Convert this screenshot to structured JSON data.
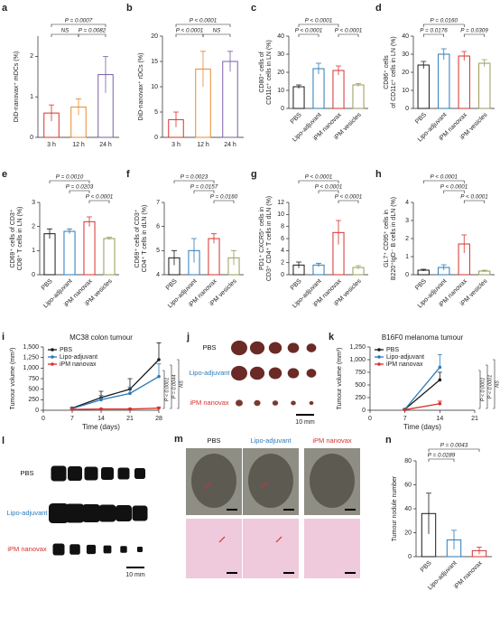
{
  "chart_data": [
    {
      "type": "bar",
      "label": "a",
      "ylabel": [
        "DiD-nanovax⁺ mDCs (%)"
      ],
      "categories": [
        "3 h",
        "12 h",
        "24 h"
      ],
      "values": [
        0.6,
        0.75,
        1.55
      ],
      "errors": [
        0.2,
        0.2,
        0.45
      ],
      "colors": [
        "#d7302c",
        "#e8892c",
        "#7b5ea7"
      ],
      "ylim": [
        0,
        2.5
      ],
      "yticks": [
        0,
        1,
        2
      ],
      "annotations": [
        "P = 0.0007",
        "NS",
        "P = 0.0082"
      ]
    },
    {
      "type": "bar",
      "label": "b",
      "ylabel": [
        "DiD-nanovax⁺ rDCs (%)"
      ],
      "categories": [
        "3 h",
        "12 h",
        "24 h"
      ],
      "values": [
        3.5,
        13.5,
        15
      ],
      "errors": [
        1.5,
        3.5,
        2
      ],
      "colors": [
        "#d7302c",
        "#e8892c",
        "#7b5ea7"
      ],
      "ylim": [
        0,
        20
      ],
      "yticks": [
        0,
        5,
        10,
        15,
        20
      ],
      "annotations": [
        "P < 0.0001",
        "P < 0.0001",
        "NS"
      ]
    },
    {
      "type": "bar",
      "label": "c",
      "ylabel": [
        "CD80⁺ cells of",
        "CD11c⁺ cells in LN (%)"
      ],
      "categories": [
        "PBS",
        "Lipo-adjuvant",
        "iPM nanovax",
        "iPM vesicles"
      ],
      "values": [
        12,
        22,
        21,
        13
      ],
      "errors": [
        1,
        3,
        2.5,
        0.8
      ],
      "colors": [
        "#1a1a1a",
        "#2a7ab9",
        "#d7302c",
        "#9a9a5a"
      ],
      "ylim": [
        0,
        40
      ],
      "yticks": [
        0,
        10,
        20,
        30,
        40
      ],
      "annotations": [
        "P < 0.0001",
        "P < 0.0001",
        "P < 0.0001"
      ]
    },
    {
      "type": "bar",
      "label": "d",
      "ylabel": [
        "CD86⁺ cells",
        "of CD11c⁺ cells in LN (%)"
      ],
      "categories": [
        "PBS",
        "Lipo-adjuvant",
        "iPM nanovax",
        "iPM vesicles"
      ],
      "values": [
        24,
        30,
        29,
        25
      ],
      "errors": [
        2,
        3,
        2.5,
        2
      ],
      "colors": [
        "#1a1a1a",
        "#2a7ab9",
        "#d7302c",
        "#9a9a5a"
      ],
      "ylim": [
        0,
        40
      ],
      "yticks": [
        0,
        10,
        20,
        30,
        40
      ],
      "annotations": [
        "P = 0.0160",
        "P = 0.0176",
        "P = 0.0309"
      ]
    },
    {
      "type": "bar",
      "label": "e",
      "ylabel": [
        "CD69⁺ cells of CD3⁺",
        "CD8⁺ T cells in LN (%)"
      ],
      "categories": [
        "PBS",
        "Lipo-adjuvant",
        "iPM nanovax",
        "iPM vesicles"
      ],
      "values": [
        1.7,
        1.8,
        2.2,
        1.5
      ],
      "errors": [
        0.2,
        0.1,
        0.2,
        0.05
      ],
      "colors": [
        "#1a1a1a",
        "#2a7ab9",
        "#d7302c",
        "#9a9a5a"
      ],
      "ylim": [
        0,
        3
      ],
      "yticks": [
        0,
        1,
        2,
        3
      ],
      "annotations": [
        "P = 0.0010",
        "P = 0.0203",
        "P < 0.0001"
      ]
    },
    {
      "type": "bar",
      "label": "f",
      "ylabel": [
        "CD69⁺ cells of CD3⁺",
        "CD4⁺ T cells in dLN (%)"
      ],
      "categories": [
        "PBS",
        "Lipo-adjuvant",
        "iPM nanovax",
        "iPM vesicles"
      ],
      "values": [
        4.7,
        5.0,
        5.5,
        4.7
      ],
      "errors": [
        0.3,
        0.5,
        0.2,
        0.3
      ],
      "colors": [
        "#1a1a1a",
        "#2a7ab9",
        "#d7302c",
        "#9a9a5a"
      ],
      "ylim": [
        4,
        7
      ],
      "yticks": [
        4,
        5,
        6,
        7
      ],
      "annotations": [
        "P = 0.0023",
        "P = 0.0157",
        "P = 0.0160"
      ]
    },
    {
      "type": "bar",
      "label": "g",
      "ylabel": [
        "PD1⁺ CXCR5⁺ cells in",
        "CD3⁺ CD4⁺ T cells in dLN (%)"
      ],
      "categories": [
        "PBS",
        "Lipo-adjuvant",
        "iPM nanovax",
        "iPM vesicles"
      ],
      "values": [
        1.6,
        1.6,
        7,
        1.2
      ],
      "errors": [
        0.5,
        0.3,
        2,
        0.3
      ],
      "colors": [
        "#1a1a1a",
        "#2a7ab9",
        "#d7302c",
        "#9a9a5a"
      ],
      "ylim": [
        0,
        12
      ],
      "yticks": [
        0,
        2,
        4,
        6,
        8,
        10,
        12
      ],
      "annotations": [
        "P < 0.0001",
        "P < 0.0001",
        "P < 0.0001"
      ]
    },
    {
      "type": "bar",
      "label": "h",
      "ylabel": [
        "GL7⁺ CD95⁺ cells in",
        "B220⁺IgD⁻ B cells in dLN (%)"
      ],
      "categories": [
        "PBS",
        "Lipo-adjuvant",
        "iPM nanovax",
        "iPM vesicles"
      ],
      "values": [
        0.25,
        0.4,
        1.7,
        0.2
      ],
      "errors": [
        0.05,
        0.15,
        0.5,
        0.05
      ],
      "colors": [
        "#1a1a1a",
        "#2a7ab9",
        "#d7302c",
        "#9a9a5a"
      ],
      "ylim": [
        0,
        4
      ],
      "yticks": [
        0,
        1,
        2,
        3,
        4
      ],
      "annotations": [
        "P < 0.0001",
        "P < 0.0001",
        "P < 0.0001"
      ]
    },
    {
      "type": "line",
      "label": "i",
      "title": "MC38 colon tumour",
      "xlabel": "Time (days)",
      "ylabel": "Tumour volume (mm³)",
      "xlim": [
        0,
        28
      ],
      "xticks": [
        0,
        7,
        14,
        21,
        28
      ],
      "ylim": [
        0,
        1500
      ],
      "yticks": [
        0,
        250,
        500,
        750,
        {
          "value": 1000,
          "label": "1,000"
        },
        {
          "value": 1250,
          "label": "1,250"
        },
        {
          "value": 1500,
          "label": "1,500"
        }
      ],
      "series": [
        {
          "name": "PBS",
          "color": "#1a1a1a",
          "x": [
            7,
            14,
            21,
            28
          ],
          "values": [
            50,
            300,
            500,
            1200
          ],
          "errors": [
            20,
            150,
            250,
            400
          ]
        },
        {
          "name": "Lipo-adjuvant",
          "color": "#2a7ab9",
          "x": [
            7,
            14,
            21,
            28
          ],
          "values": [
            40,
            250,
            400,
            800
          ],
          "errors": [
            20,
            100,
            150,
            300
          ]
        },
        {
          "name": "iPM nanovax",
          "color": "#d7302c",
          "x": [
            7,
            14,
            21,
            28
          ],
          "values": [
            20,
            30,
            30,
            50
          ],
          "errors": [
            5,
            10,
            15,
            30
          ]
        }
      ],
      "annotations": [
        "P < 0.0001",
        "P = 0.0044",
        "NS"
      ]
    },
    {
      "type": "line",
      "label": "k",
      "title": "B16F0 melanoma tumour",
      "xlabel": "Time (days)",
      "ylabel": "Tumour volume (mm³)",
      "xlim": [
        0,
        21
      ],
      "xticks": [
        0,
        7,
        14,
        21
      ],
      "ylim": [
        0,
        1250
      ],
      "yticks": [
        0,
        250,
        500,
        750,
        {
          "value": 1000,
          "label": "1,000"
        },
        {
          "value": 1250,
          "label": "1,250"
        }
      ],
      "series": [
        {
          "name": "PBS",
          "color": "#1a1a1a",
          "x": [
            7,
            14
          ],
          "values": [
            20,
            600
          ],
          "errors": [
            10,
            150
          ]
        },
        {
          "name": "Lipo-adjuvant",
          "color": "#2a7ab9",
          "x": [
            7,
            14
          ],
          "values": [
            20,
            850
          ],
          "errors": [
            10,
            250
          ]
        },
        {
          "name": "iPM nanovax",
          "color": "#d7302c",
          "x": [
            7,
            14
          ],
          "values": [
            10,
            130
          ],
          "errors": [
            5,
            50
          ]
        }
      ],
      "annotations": [
        "P < 0.0001",
        "P < 0.0001",
        "NS"
      ]
    },
    {
      "type": "bar",
      "label": "n",
      "ylabel": [
        "Tumour nodule number"
      ],
      "categories": [
        "PBS",
        "Lipo-adjuvant",
        "iPM nanovax"
      ],
      "values": [
        36,
        14,
        5
      ],
      "errors": [
        17,
        8,
        3
      ],
      "colors": [
        "#1a1a1a",
        "#2a7ab9",
        "#d7302c"
      ],
      "ylim": [
        0,
        80
      ],
      "yticks": [
        0,
        20,
        40,
        60,
        80
      ],
      "annotations": [
        "P = 0.0043",
        "P = 0.0289"
      ]
    }
  ],
  "image_panels": [
    {
      "label": "j",
      "rows": [
        "PBS",
        "Lipo-adjuvant",
        "iPM nanovax"
      ],
      "scale": "10 mm"
    },
    {
      "label": "l",
      "rows": [
        "PBS",
        "Lipo-adjuvant",
        "iPM nanovax"
      ],
      "scale": "10 mm"
    },
    {
      "label": "m",
      "columns": [
        "PBS",
        "Lipo-adjuvant",
        "iPM nanovax"
      ]
    }
  ]
}
